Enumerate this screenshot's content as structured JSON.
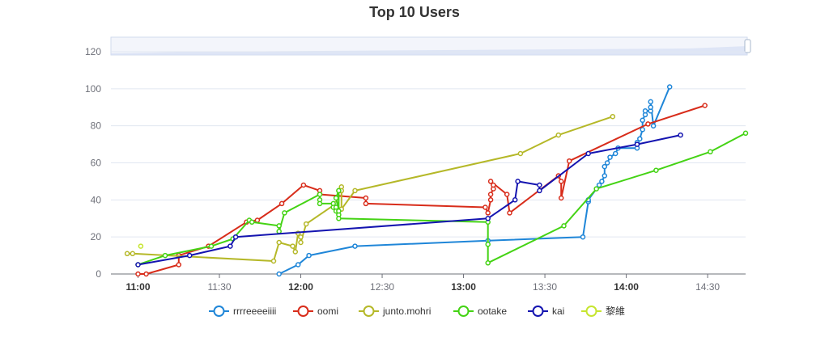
{
  "chart_data": {
    "type": "line",
    "title": "Top 10 Users",
    "xlabel": "",
    "ylabel": "",
    "ylim": [
      0,
      120
    ],
    "yticks": [
      0,
      20,
      40,
      60,
      80,
      100,
      120
    ],
    "xlim": [
      "10:50",
      "14:44"
    ],
    "xticks": [
      {
        "label": "11:00",
        "time": "11:00",
        "bold": true
      },
      {
        "label": "11:30",
        "time": "11:30",
        "bold": false
      },
      {
        "label": "12:00",
        "time": "12:00",
        "bold": true
      },
      {
        "label": "12:30",
        "time": "12:30",
        "bold": false
      },
      {
        "label": "13:00",
        "time": "13:00",
        "bold": true
      },
      {
        "label": "13:30",
        "time": "13:30",
        "bold": false
      },
      {
        "label": "14:00",
        "time": "14:00",
        "bold": true
      },
      {
        "label": "14:30",
        "time": "14:30",
        "bold": false
      }
    ],
    "grid": true,
    "legend_position": "bottom",
    "data_zoom_slider": true,
    "series": [
      {
        "name": "rrrreeeeiiii",
        "color": "#1f86d8",
        "points": [
          [
            "11:52",
            0
          ],
          [
            "11:59",
            5
          ],
          [
            "12:03",
            10
          ],
          [
            "12:20",
            15
          ],
          [
            "13:09",
            18
          ],
          [
            "13:44",
            20
          ],
          [
            "13:46",
            39
          ],
          [
            "13:46",
            40
          ],
          [
            "13:50",
            48
          ],
          [
            "13:51",
            50
          ],
          [
            "13:52",
            53
          ],
          [
            "13:52",
            58
          ],
          [
            "13:53",
            60
          ],
          [
            "13:54",
            63
          ],
          [
            "13:56",
            65
          ],
          [
            "13:57",
            68
          ],
          [
            "14:04",
            68
          ],
          [
            "14:04",
            71
          ],
          [
            "14:05",
            73
          ],
          [
            "14:06",
            78
          ],
          [
            "14:06",
            83
          ],
          [
            "14:07",
            86
          ],
          [
            "14:07",
            88
          ],
          [
            "14:09",
            88
          ],
          [
            "14:09",
            90
          ],
          [
            "14:09",
            93
          ],
          [
            "14:10",
            80
          ],
          [
            "14:16",
            101
          ]
        ]
      },
      {
        "name": "oomi",
        "color": "#d82c1a",
        "points": [
          [
            "11:00",
            0
          ],
          [
            "11:03",
            0
          ],
          [
            "11:15",
            5
          ],
          [
            "11:15",
            10
          ],
          [
            "11:26",
            15
          ],
          [
            "11:40",
            28
          ],
          [
            "11:44",
            29
          ],
          [
            "11:53",
            38
          ],
          [
            "12:01",
            48
          ],
          [
            "12:07",
            45
          ],
          [
            "12:07",
            43
          ],
          [
            "12:24",
            41
          ],
          [
            "12:24",
            38
          ],
          [
            "13:08",
            36
          ],
          [
            "13:09",
            33
          ],
          [
            "13:10",
            40
          ],
          [
            "13:10",
            43
          ],
          [
            "13:11",
            46
          ],
          [
            "13:11",
            48
          ],
          [
            "13:10",
            50
          ],
          [
            "13:16",
            43
          ],
          [
            "13:17",
            33
          ],
          [
            "13:35",
            53
          ],
          [
            "13:36",
            50
          ],
          [
            "13:36",
            41
          ],
          [
            "13:39",
            61
          ],
          [
            "14:08",
            81
          ],
          [
            "14:29",
            91
          ]
        ]
      },
      {
        "name": "junto.mohri",
        "color": "#b5b828",
        "points": [
          [
            "10:56",
            11
          ],
          [
            "10:58",
            11
          ],
          [
            "11:50",
            7
          ],
          [
            "11:52",
            17
          ],
          [
            "11:57",
            15
          ],
          [
            "11:58",
            12
          ],
          [
            "11:59",
            22
          ],
          [
            "12:00",
            20
          ],
          [
            "12:00",
            17
          ],
          [
            "12:02",
            27
          ],
          [
            "12:13",
            38
          ],
          [
            "12:14",
            45
          ],
          [
            "12:15",
            47
          ],
          [
            "12:15",
            45
          ],
          [
            "12:15",
            35
          ],
          [
            "12:20",
            45
          ],
          [
            "13:21",
            65
          ],
          [
            "13:35",
            75
          ],
          [
            "13:55",
            85
          ]
        ]
      },
      {
        "name": "ootake",
        "color": "#44d314",
        "points": [
          [
            "11:00",
            5
          ],
          [
            "11:10",
            10
          ],
          [
            "11:27",
            15
          ],
          [
            "11:35",
            19
          ],
          [
            "11:41",
            29
          ],
          [
            "11:42",
            28
          ],
          [
            "11:52",
            26
          ],
          [
            "11:52",
            23
          ],
          [
            "11:54",
            33
          ],
          [
            "12:07",
            43
          ],
          [
            "12:07",
            40
          ],
          [
            "12:07",
            38
          ],
          [
            "12:12",
            38
          ],
          [
            "12:12",
            36
          ],
          [
            "12:13",
            36
          ],
          [
            "12:13",
            34
          ],
          [
            "12:14",
            32
          ],
          [
            "12:14",
            45
          ],
          [
            "12:13",
            41
          ],
          [
            "12:14",
            34
          ],
          [
            "12:14",
            30
          ],
          [
            "13:09",
            28
          ],
          [
            "13:09",
            16
          ],
          [
            "13:09",
            6
          ],
          [
            "13:37",
            26
          ],
          [
            "13:49",
            46
          ],
          [
            "14:11",
            56
          ],
          [
            "14:31",
            66
          ],
          [
            "14:44",
            76
          ]
        ]
      },
      {
        "name": "kai",
        "color": "#1414b0",
        "points": [
          [
            "11:00",
            5
          ],
          [
            "11:19",
            10
          ],
          [
            "11:34",
            15
          ],
          [
            "11:36",
            20
          ],
          [
            "13:09",
            30
          ],
          [
            "13:19",
            40
          ],
          [
            "13:20",
            50
          ],
          [
            "13:28",
            48
          ],
          [
            "13:28",
            45
          ],
          [
            "13:46",
            65
          ],
          [
            "14:04",
            70
          ],
          [
            "14:20",
            75
          ]
        ]
      },
      {
        "name": "黎維",
        "color": "#c6e530",
        "points": [
          [
            "11:01",
            15
          ]
        ]
      }
    ]
  }
}
